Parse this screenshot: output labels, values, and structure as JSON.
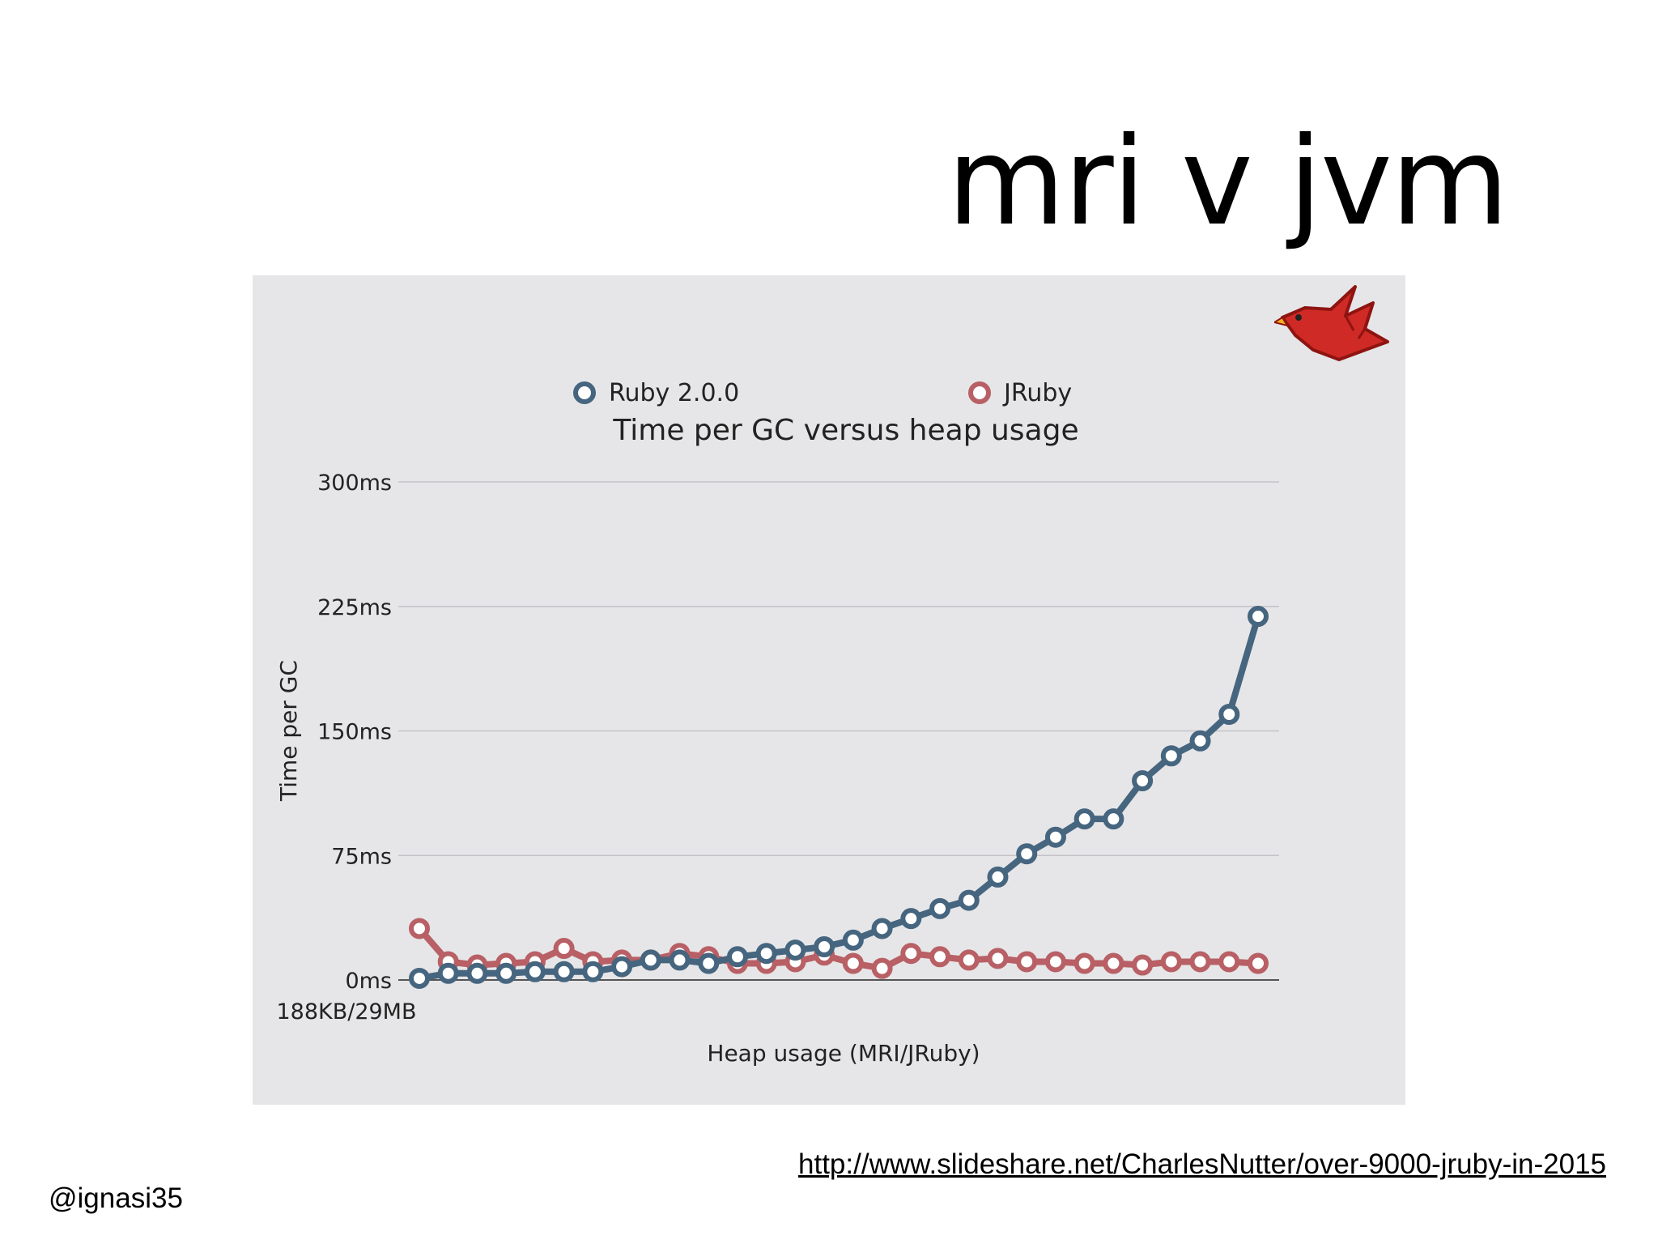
{
  "slide": {
    "title": "mri v jvm",
    "source_url": "http://www.slideshare.net/CharlesNutter/over-9000-jruby-in-2015",
    "author": "@ignasi35",
    "logo_icon": "jruby-bird-icon"
  },
  "colors": {
    "ruby": "#46657f",
    "jruby": "#b86065",
    "panel": "#e6e6e8",
    "grid": "#c4c4c8",
    "text": "#222222"
  },
  "chart_data": {
    "type": "line",
    "title": "Time per GC versus heap usage",
    "xlabel": "Heap usage (MRI/JRuby)",
    "ylabel": "Time per GC",
    "x_first_label": "188KB/29MB",
    "ylim": [
      0,
      300
    ],
    "yticks": [
      0,
      75,
      150,
      225,
      300
    ],
    "ytick_labels": [
      "0ms",
      "75ms",
      "150ms",
      "225ms",
      "300ms"
    ],
    "legend_position": "top-center",
    "grid": true,
    "point_count": 30,
    "series": [
      {
        "name": "Ruby 2.0.0",
        "values": [
          1,
          4,
          4,
          4,
          5,
          5,
          5,
          8,
          12,
          12,
          10,
          14,
          16,
          18,
          20,
          24,
          31,
          37,
          43,
          48,
          62,
          76,
          86,
          97,
          97,
          120,
          135,
          144,
          160,
          219
        ]
      },
      {
        "name": "JRuby",
        "values": [
          31,
          11,
          9,
          10,
          11,
          19,
          11,
          12,
          12,
          16,
          14,
          10,
          10,
          11,
          15,
          10,
          7,
          16,
          14,
          12,
          13,
          11,
          11,
          10,
          10,
          9,
          11,
          11,
          11,
          10
        ]
      }
    ]
  }
}
